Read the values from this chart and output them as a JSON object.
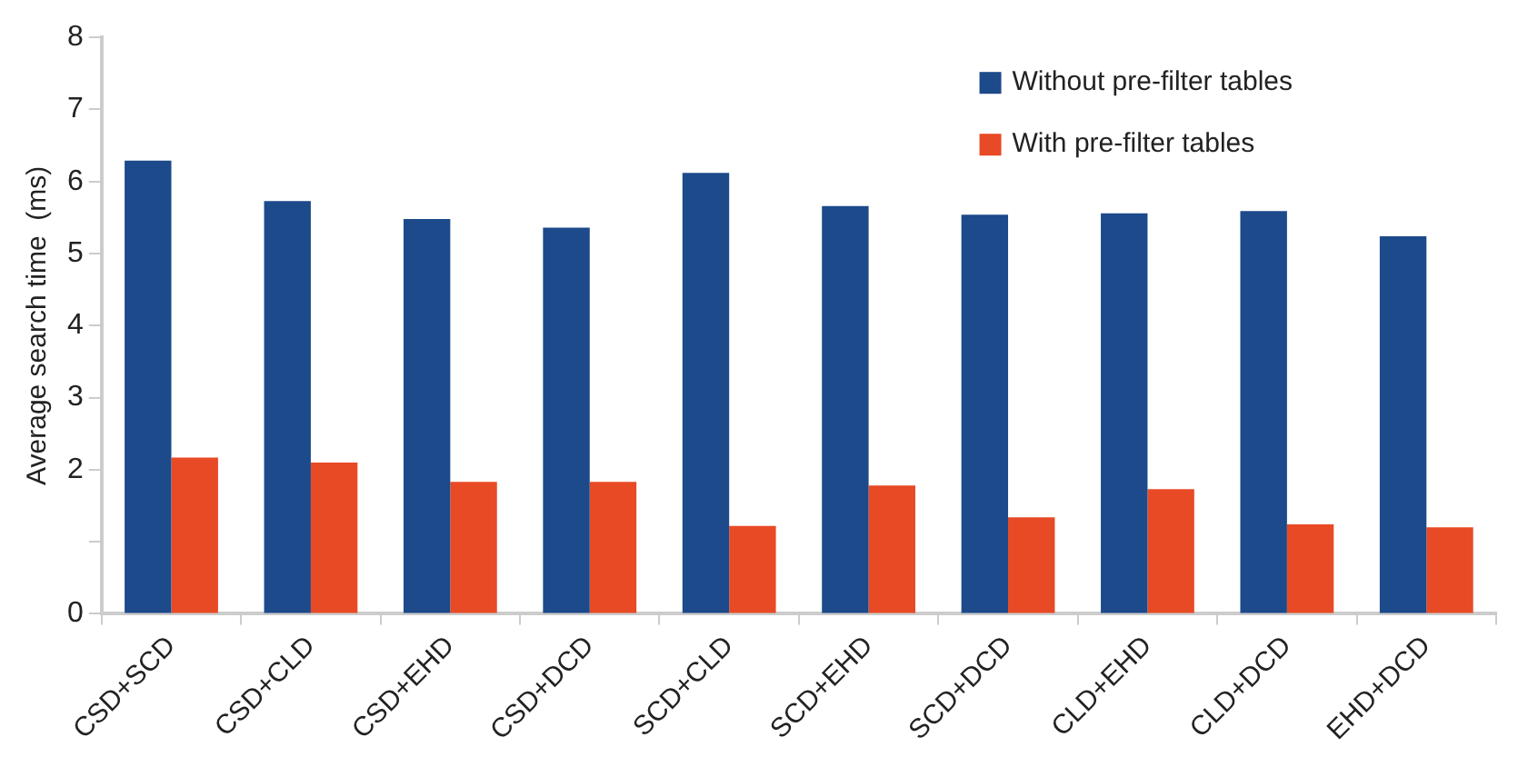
{
  "chart_data": {
    "type": "bar",
    "ylabel": "Average search time  (ms)",
    "categories": [
      "CSD+SCD",
      "CSD+CLD",
      "CSD+EHD",
      "CSD+DCD",
      "SCD+CLD",
      "SCD+EHD",
      "SCD+DCD",
      "CLD+EHD",
      "CLD+DCD",
      "EHD+DCD"
    ],
    "series": [
      {
        "name": "Without pre-filter tables",
        "color": "#1c4a8a",
        "values": [
          6.29,
          5.73,
          5.48,
          5.36,
          6.12,
          5.66,
          5.54,
          5.56,
          5.59,
          5.24
        ]
      },
      {
        "name": "With pre-filter tables",
        "color": "#e84a25",
        "values": [
          2.17,
          2.1,
          1.83,
          1.83,
          1.22,
          1.78,
          1.34,
          1.73,
          1.24,
          1.2
        ]
      }
    ],
    "ylim": [
      0,
      8
    ],
    "yticks": [
      0,
      {
        "value": 1,
        "label": null
      },
      2,
      3,
      4,
      5,
      6,
      7,
      8
    ],
    "grid": false,
    "legend": "top right"
  }
}
